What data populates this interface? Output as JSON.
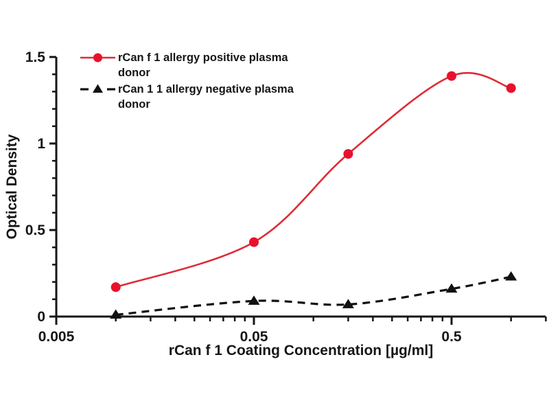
{
  "figure": {
    "background": "#ffffff",
    "text_color": "#161616"
  },
  "chart_data": {
    "type": "line",
    "x_scale": "log",
    "x": [
      0.01,
      0.05,
      0.15,
      0.5,
      1.0
    ],
    "series": [
      {
        "name": "rCan f 1 allergy positive plasma donor",
        "values": [
          0.17,
          0.43,
          0.94,
          1.39,
          1.32
        ],
        "line_color": "#dd2c34",
        "marker_color": "#e8112d",
        "marker": "circle",
        "line_style": "solid"
      },
      {
        "name": "rCan 1 1 allergy negative plasma donor",
        "values": [
          0.01,
          0.09,
          0.07,
          0.16,
          0.23
        ],
        "line_color": "#111111",
        "marker_color": "#111111",
        "marker": "triangle",
        "line_style": "dashed"
      }
    ],
    "title": "",
    "xlabel": "rCan f 1 Coating Concentration [µg/ml]",
    "ylabel": "Optical Density",
    "xlim": [
      0.005,
      1.5
    ],
    "ylim": [
      0,
      1.5
    ],
    "x_major_ticks": [
      0.005,
      0.05,
      0.5
    ],
    "x_major_tick_labels": [
      "0.005",
      "0.05",
      "0.5"
    ],
    "y_major_ticks": [
      0,
      0.5,
      1,
      1.5
    ],
    "y_major_tick_labels": [
      "0",
      "0.5",
      "1",
      "1.5"
    ],
    "y_minor_step": 0.1,
    "grid": false,
    "legend_position": "top-left",
    "legend": [
      {
        "lines": [
          "rCan f 1 allergy positive plasma",
          "donor"
        ]
      },
      {
        "lines": [
          "rCan 1 1 allergy negative plasma",
          "donor"
        ]
      }
    ]
  }
}
